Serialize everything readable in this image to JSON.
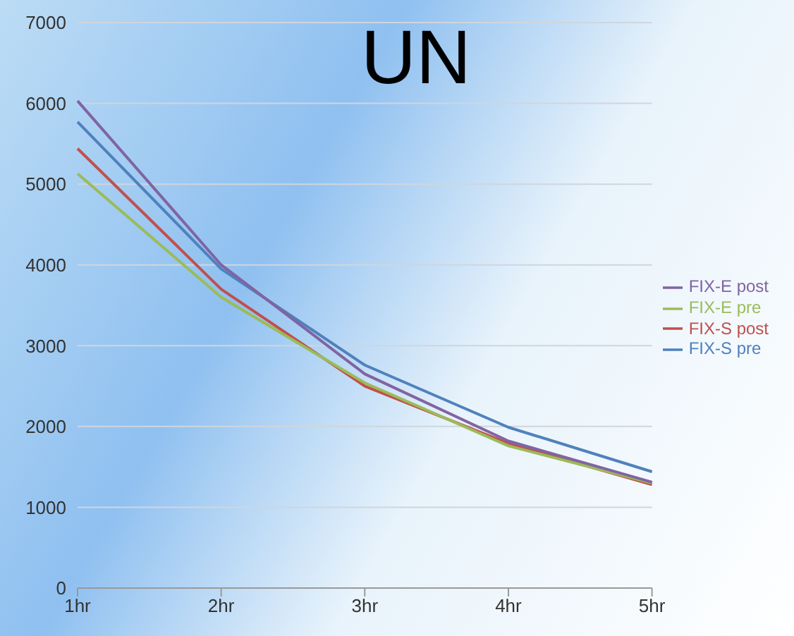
{
  "chart_data": {
    "type": "line",
    "title": "UN",
    "categories": [
      "1hr",
      "2hr",
      "3hr",
      "4hr",
      "5hr"
    ],
    "series": [
      {
        "name": "FIX-S pre",
        "color": "#4f81bd",
        "values": [
          5770,
          3950,
          2760,
          1990,
          1440
        ]
      },
      {
        "name": "FIX-S post",
        "color": "#c0504d",
        "values": [
          5440,
          3700,
          2500,
          1790,
          1280
        ]
      },
      {
        "name": "FIX-E pre",
        "color": "#9bbb59",
        "values": [
          5130,
          3600,
          2540,
          1760,
          1300
        ]
      },
      {
        "name": "FIX-E post",
        "color": "#8064a2",
        "values": [
          6030,
          4000,
          2650,
          1820,
          1310
        ]
      }
    ],
    "ylim": [
      0,
      7000
    ],
    "yticks": [
      0,
      1000,
      2000,
      3000,
      4000,
      5000,
      6000,
      7000
    ],
    "grid": "y",
    "legend": "right",
    "marker": "none",
    "line_style": "solid"
  }
}
